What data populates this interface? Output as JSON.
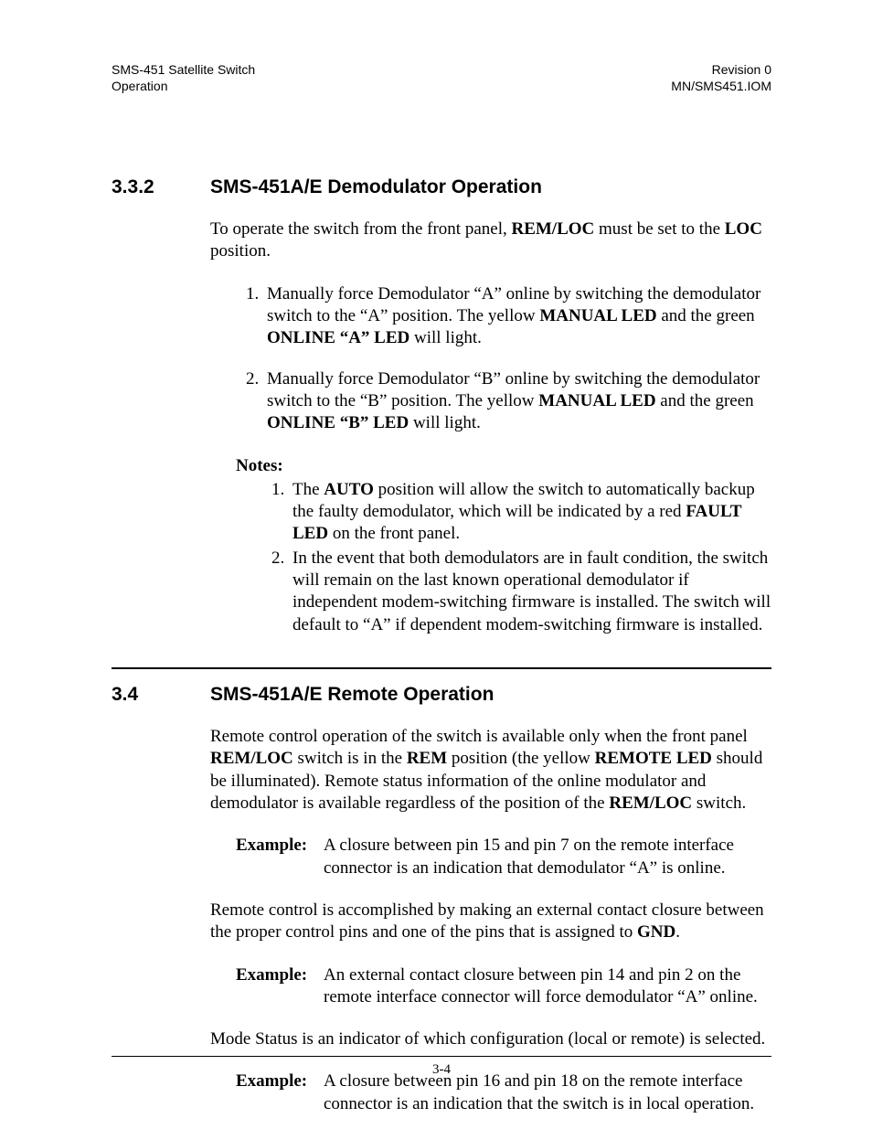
{
  "header": {
    "left_line1": "SMS-451 Satellite Switch",
    "left_line2": "Operation",
    "right_line1": "Revision 0",
    "right_line2": "MN/SMS451.IOM"
  },
  "section_332": {
    "number": "3.3.2",
    "title": "SMS-451A/E Demodulator Operation",
    "intro_pre": "To operate the switch from the front panel, ",
    "intro_b1": "REM/LOC",
    "intro_mid": " must be set to the ",
    "intro_b2": "LOC",
    "intro_post": " position.",
    "step1_a": "Manually force Demodulator “A” online by switching the demodulator switch to the “A” position. The yellow ",
    "step1_b1": "MANUAL LED",
    "step1_b": " and the green ",
    "step1_b2": "ONLINE “A” LED",
    "step1_c": " will light.",
    "step2_a": "Manually force Demodulator “B” online by switching the demodulator switch to the “B” position. The yellow ",
    "step2_b1": "MANUAL LED",
    "step2_b": " and the green ",
    "step2_b2": "ONLINE “B” LED",
    "step2_c": " will light.",
    "notes_label": "Notes:",
    "note1_a": "The ",
    "note1_b1": "AUTO",
    "note1_b": " position will allow the switch to automatically backup the faulty demodulator, which will be indicated by a red ",
    "note1_b2": "FAULT LED",
    "note1_c": " on the front panel.",
    "note2": "In the event that both demodulators are in fault condition, the switch will remain on the last known operational demodulator if independent modem-switching firmware is installed. The switch will default to “A” if dependent modem-switching firmware is installed."
  },
  "section_34": {
    "number": "3.4",
    "title": "SMS-451A/E Remote Operation",
    "p1_a": "Remote control operation of the switch is available only when the front panel ",
    "p1_b1": "REM/LOC",
    "p1_b": " switch is in the ",
    "p1_b2": "REM",
    "p1_c": " position (the yellow ",
    "p1_b3": "REMOTE LED",
    "p1_d": " should be illuminated). Remote status information of the online modulator and demodulator is available regardless of the position of the ",
    "p1_b4": "REM/LOC",
    "p1_e": " switch.",
    "example_label": "Example:",
    "ex1": "A closure between pin 15 and pin 7 on the remote interface connector is an indication that demodulator “A” is online.",
    "p2_a": "Remote control is accomplished by making an external contact closure between the proper control pins and one of the pins that is assigned to ",
    "p2_b1": "GND",
    "p2_b": ".",
    "ex2": "An external contact closure between pin 14 and pin 2 on the remote interface connector will force demodulator “A” online.",
    "p3": "Mode Status is an indicator of which configuration (local or remote) is selected.",
    "ex3": "A closure between pin 16 and pin 18 on the remote interface connector is an indication that the switch is in local operation."
  },
  "footer": {
    "page": "3-4"
  }
}
